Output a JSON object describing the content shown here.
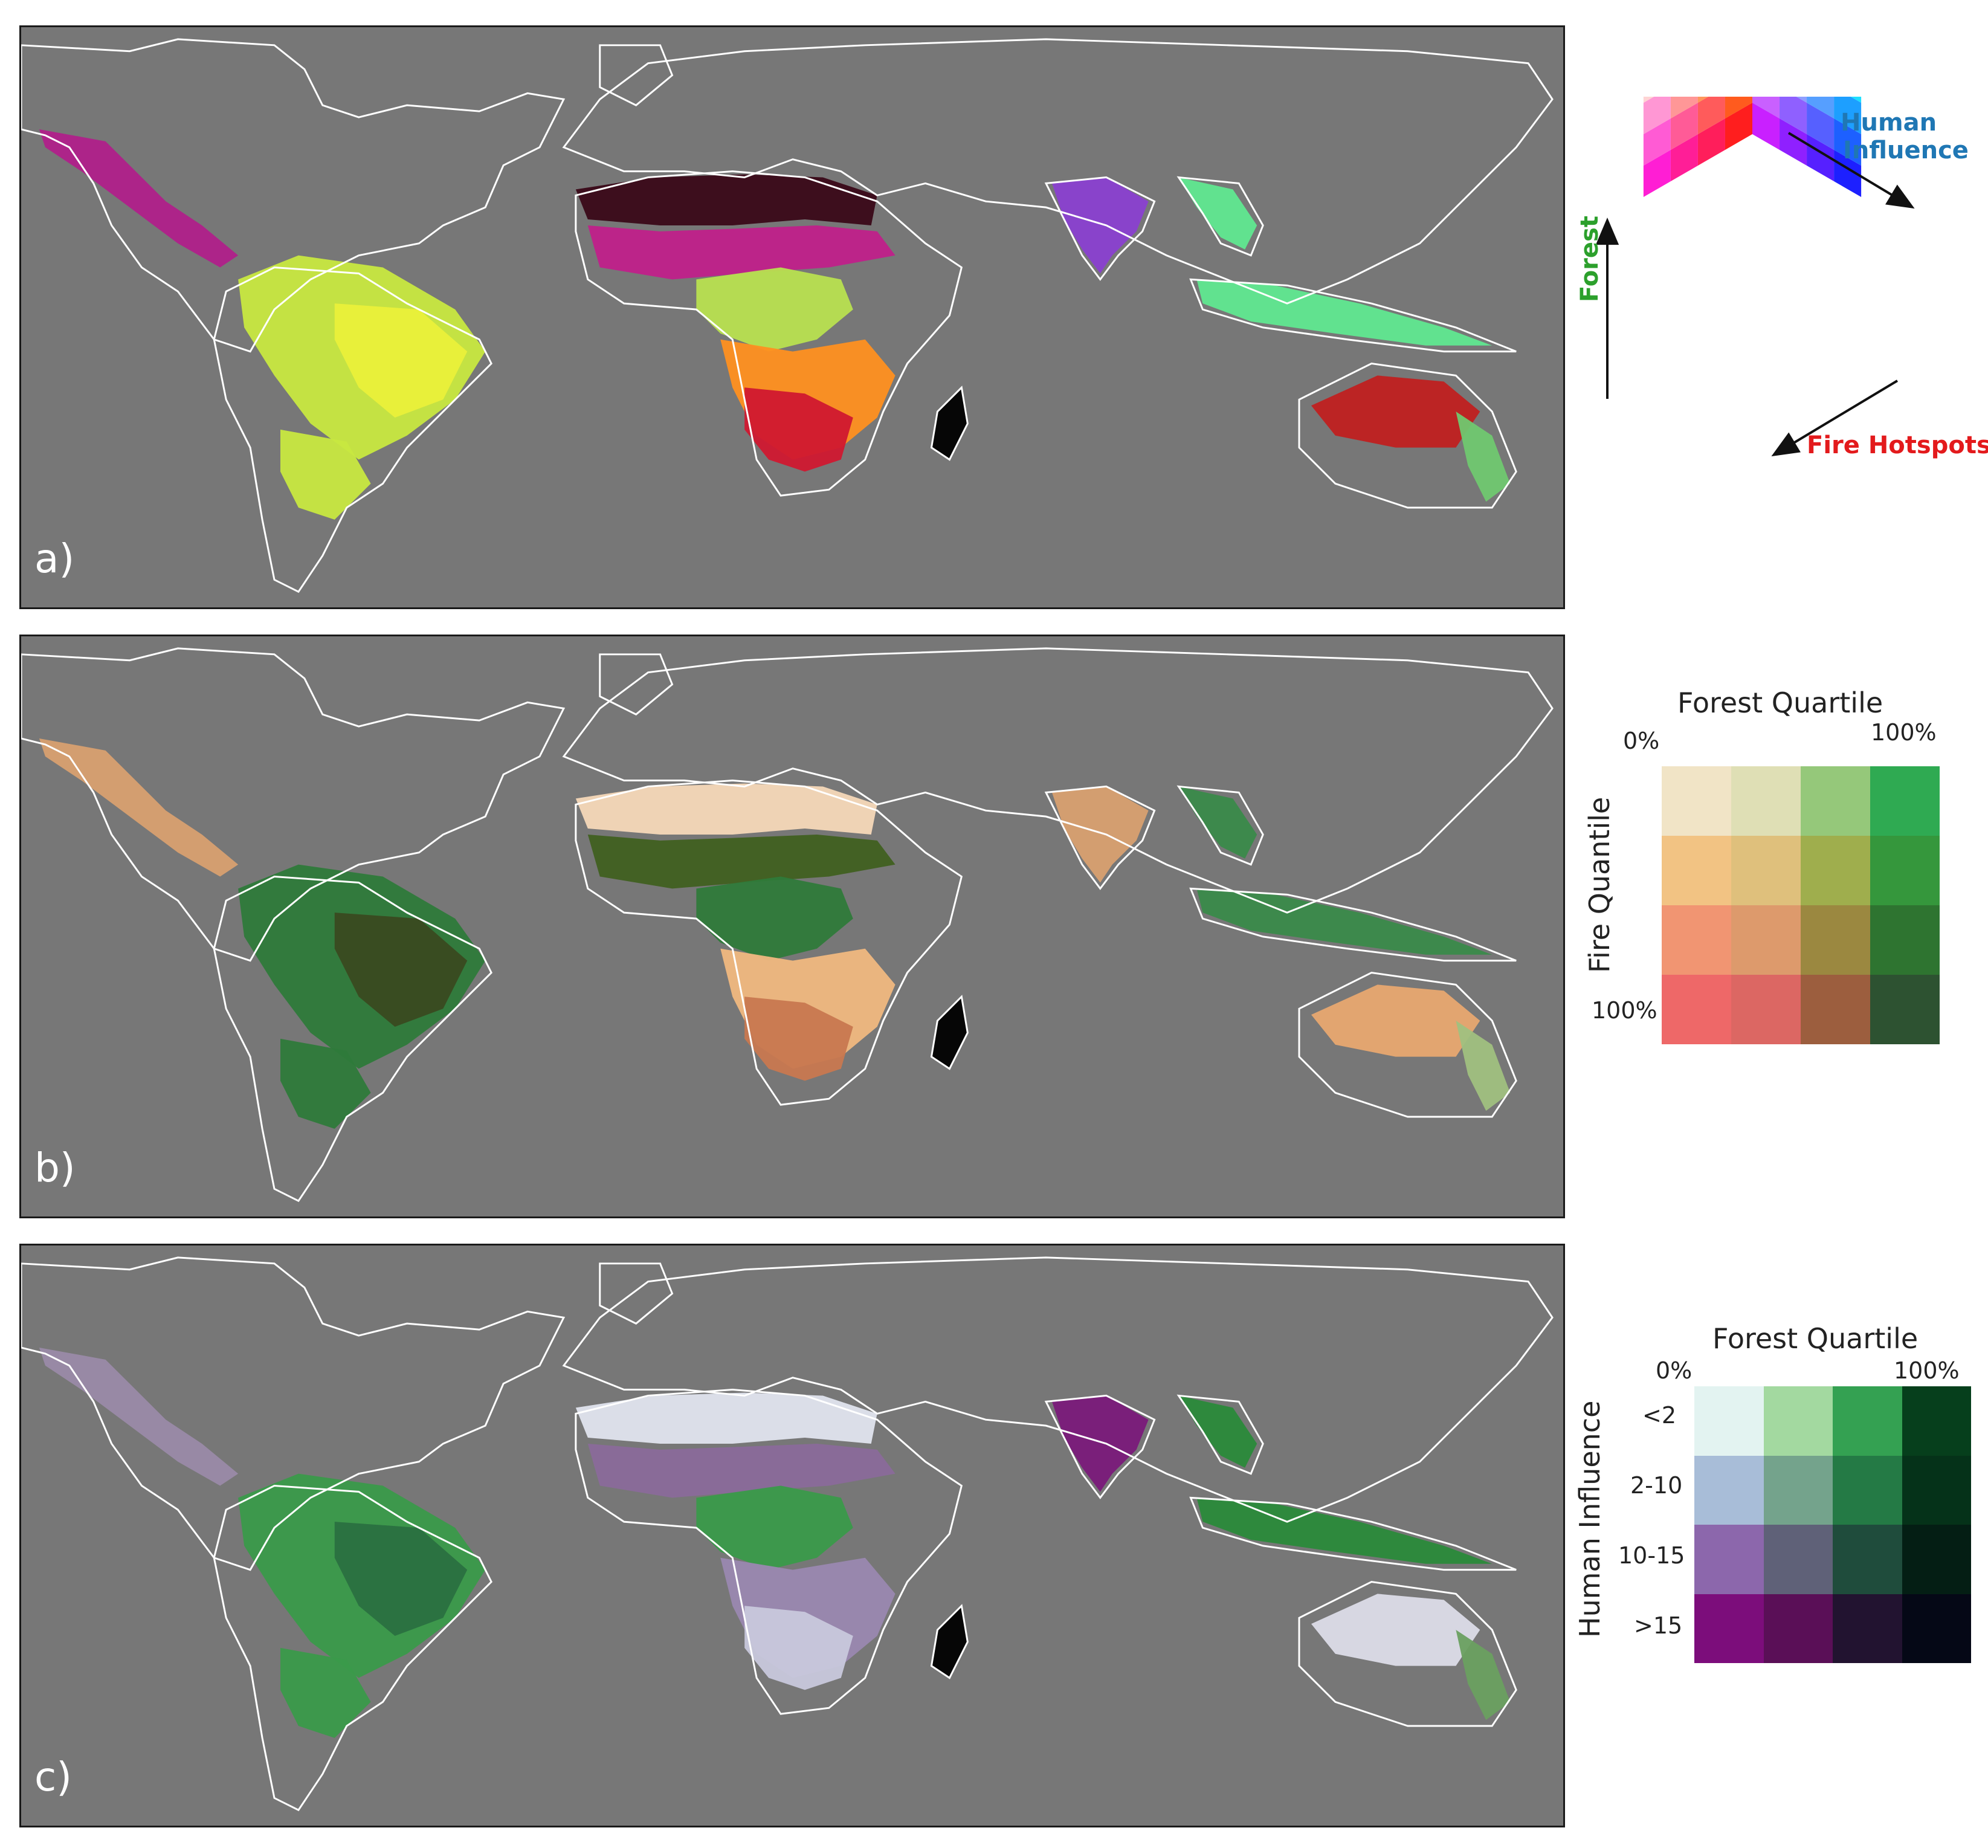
{
  "panels": [
    {
      "letter": "a)"
    },
    {
      "letter": "b)"
    },
    {
      "letter": "c)"
    }
  ],
  "legend_a": {
    "axis_forest": "Forest",
    "axis_human": "Human\nInfluence",
    "axis_human_line1": "Human",
    "axis_human_line2": "Influence",
    "axis_fire": "Fire Hotspots",
    "colors": {
      "forest": "#2ca02c",
      "human": "#1f77b4",
      "fire": "#e31a1c"
    }
  },
  "legend_b": {
    "title": "Forest Quartile",
    "x_min": "0%",
    "x_max": "100%",
    "y_label": "Fire Quantile",
    "y_max": "100%",
    "colors": [
      [
        "#f1e4c6",
        "#dfdfb5",
        "#95c87a",
        "#2faa52"
      ],
      [
        "#f2c383",
        "#dfc07c",
        "#9fae4d",
        "#35973c"
      ],
      [
        "#f19572",
        "#dd9a6c",
        "#9b8840",
        "#2e7430"
      ],
      [
        "#ee6868",
        "#dc6763",
        "#9c5e3e",
        "#2d5231"
      ]
    ]
  },
  "legend_c": {
    "title": "Forest Quartile",
    "x_min": "0%",
    "x_max": "100%",
    "y_label": "Human Influence",
    "rows": [
      "<2",
      "2-10",
      "10-15",
      ">15"
    ],
    "colors": [
      [
        "#e3f3f1",
        "#a3d9a0",
        "#34a152",
        "#063f1c"
      ],
      [
        "#a8bdd8",
        "#74a38c",
        "#247a45",
        "#053219"
      ],
      [
        "#8c67ac",
        "#5f6178",
        "#1f4c3c",
        "#041e14"
      ],
      [
        "#7c0d7b",
        "#5a0f57",
        "#221330",
        "#050816"
      ]
    ]
  },
  "layer_colors": {
    "a": {
      "amazon": "#c8e840",
      "amazon2": "#eaf03a",
      "mexico": "#b0208a",
      "sahel": "#3a0818",
      "sahel2": "#c0208a",
      "africa_c": "#b8e050",
      "africa_s": "#d01830",
      "africa_s2": "#ff9020",
      "india": "#8a40d0",
      "seasia": "#60e890",
      "aus": "#c02020",
      "aus2": "#70c870"
    },
    "b": {
      "amazon": "#2e7a3a",
      "amazon2": "#3a4a20",
      "mexico": "#d8a070",
      "sahel": "#f6d8b8",
      "sahel2": "#406020",
      "africa_c": "#2f7a3a",
      "africa_s": "#c87850",
      "africa_s2": "#f0b880",
      "india": "#d8a070",
      "seasia": "#3a8a4a",
      "aus": "#e8a870",
      "aus2": "#a0c080"
    },
    "c": {
      "amazon": "#3a9a4a",
      "amazon2": "#2a7040",
      "mexico": "#9a8aa8",
      "sahel": "#e0e4ee",
      "sahel2": "#8a6a9a",
      "africa_c": "#3a9a4a",
      "africa_s": "#c8c8dc",
      "africa_s2": "#9a88b0",
      "india": "#7a1a7a",
      "seasia": "#2a8a3a",
      "aus": "#dcdce8",
      "aus2": "#6aa060"
    }
  }
}
